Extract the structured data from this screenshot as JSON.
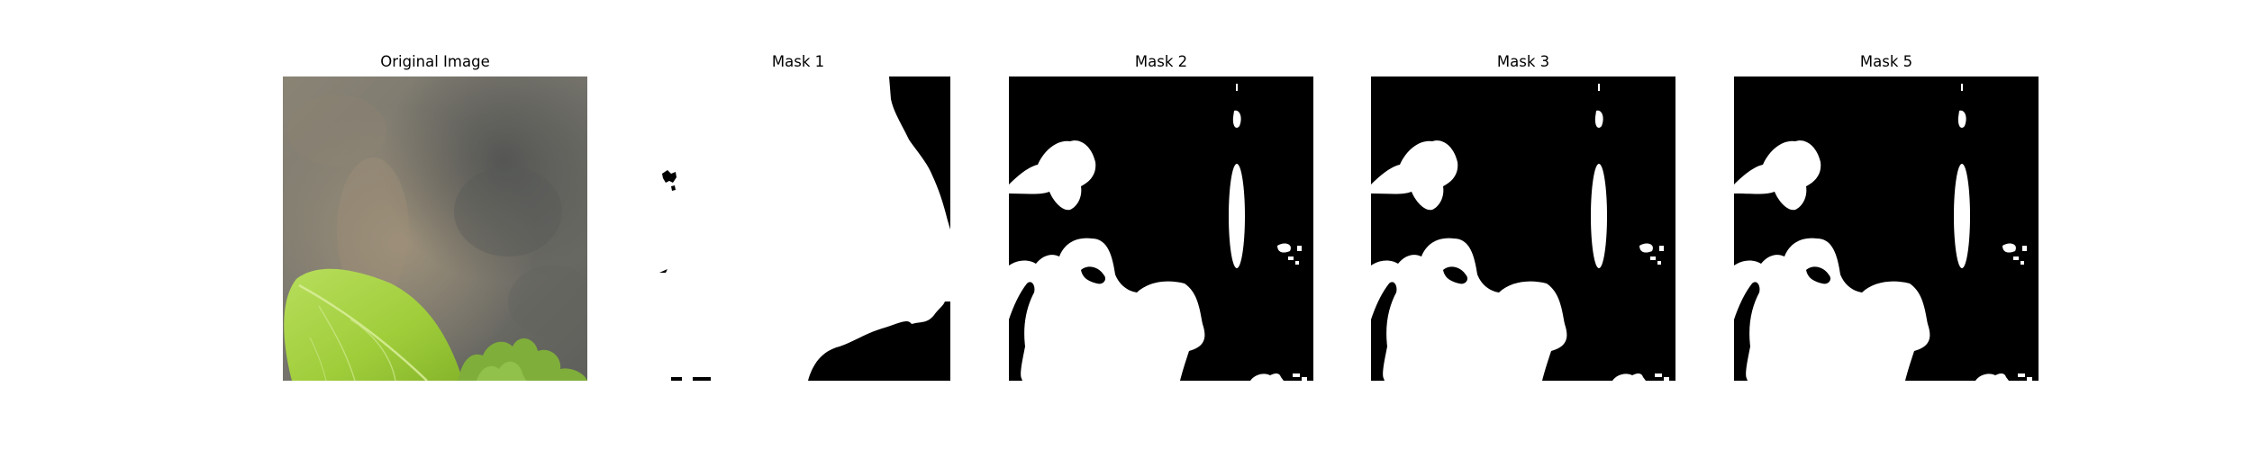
{
  "panels": [
    {
      "title": "Original Image"
    },
    {
      "title": "Mask 1"
    },
    {
      "title": "Mask 2"
    },
    {
      "title": "Mask 3"
    },
    {
      "title": "Mask 5"
    }
  ],
  "colors": {
    "background": "#ffffff",
    "mask_foreground": "#ffffff",
    "mask_background": "#000000",
    "leaf_green": "#a9d33c",
    "stone_gray": "#6f6e68"
  }
}
